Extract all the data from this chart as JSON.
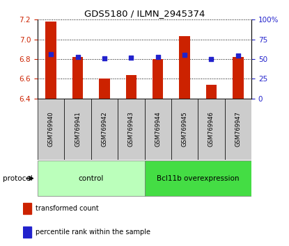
{
  "title": "GDS5180 / ILMN_2945374",
  "samples": [
    "GSM769940",
    "GSM769941",
    "GSM769942",
    "GSM769943",
    "GSM769944",
    "GSM769945",
    "GSM769946",
    "GSM769947"
  ],
  "transformed_counts": [
    7.18,
    6.82,
    6.6,
    6.64,
    6.8,
    7.03,
    6.54,
    6.82
  ],
  "percentile_ranks": [
    56,
    53,
    51,
    52,
    53,
    55,
    50,
    54
  ],
  "ylim_left": [
    6.4,
    7.2
  ],
  "yticks_left": [
    6.4,
    6.6,
    6.8,
    7.0,
    7.2
  ],
  "ylim_right": [
    0,
    100
  ],
  "yticks_right": [
    0,
    25,
    50,
    75,
    100
  ],
  "yticklabels_right": [
    "0",
    "25",
    "50",
    "75",
    "100%"
  ],
  "bar_color": "#cc2200",
  "dot_color": "#2222cc",
  "bar_bottom": 6.4,
  "groups": [
    {
      "label": "control",
      "indices": [
        0,
        1,
        2,
        3
      ],
      "color": "#bbffbb"
    },
    {
      "label": "Bcl11b overexpression",
      "indices": [
        4,
        5,
        6,
        7
      ],
      "color": "#44dd44"
    }
  ],
  "protocol_label": "protocol",
  "legend_items": [
    {
      "label": "transformed count",
      "color": "#cc2200"
    },
    {
      "label": "percentile rank within the sample",
      "color": "#2222cc"
    }
  ],
  "axis_label_color_left": "#cc2200",
  "axis_label_color_right": "#2222cc",
  "sample_area_color": "#cccccc",
  "fig_width": 4.15,
  "fig_height": 3.54,
  "fig_dpi": 100
}
